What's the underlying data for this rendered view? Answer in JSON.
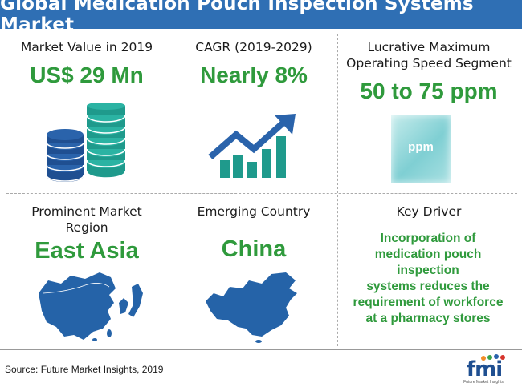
{
  "title": "Global Medication Pouch Inspection Systems Market",
  "cells": {
    "market_value": {
      "label": "Market Value in 2019",
      "value": "US$ 29 Mn"
    },
    "cagr": {
      "label": "CAGR (2019-2029)",
      "value": "Nearly 8%"
    },
    "speed": {
      "label_line1": "Lucrative Maximum",
      "label_line2": "Operating Speed Segment",
      "value": "50 to 75 ppm",
      "pouch_text": "ppm"
    },
    "region": {
      "label_line1": "Prominent Market",
      "label_line2": "Region",
      "value": "East Asia"
    },
    "country": {
      "label": "Emerging Country",
      "value": "China"
    },
    "driver": {
      "label": "Key Driver",
      "lines": [
        "Incorporation of",
        "medication pouch inspection",
        "systems reduces the",
        "requirement of workforce",
        "at a pharmacy stores"
      ]
    }
  },
  "source": "Source: Future Market Insights, 2019",
  "logo": {
    "text": "fmi",
    "tagline": "Future Market Insights"
  },
  "colors": {
    "banner": "#2f6fb4",
    "accent_green": "#2f9a3c",
    "teal": "#1f9a8c",
    "navy": "#1f4f91",
    "map_blue": "#2563a8"
  }
}
